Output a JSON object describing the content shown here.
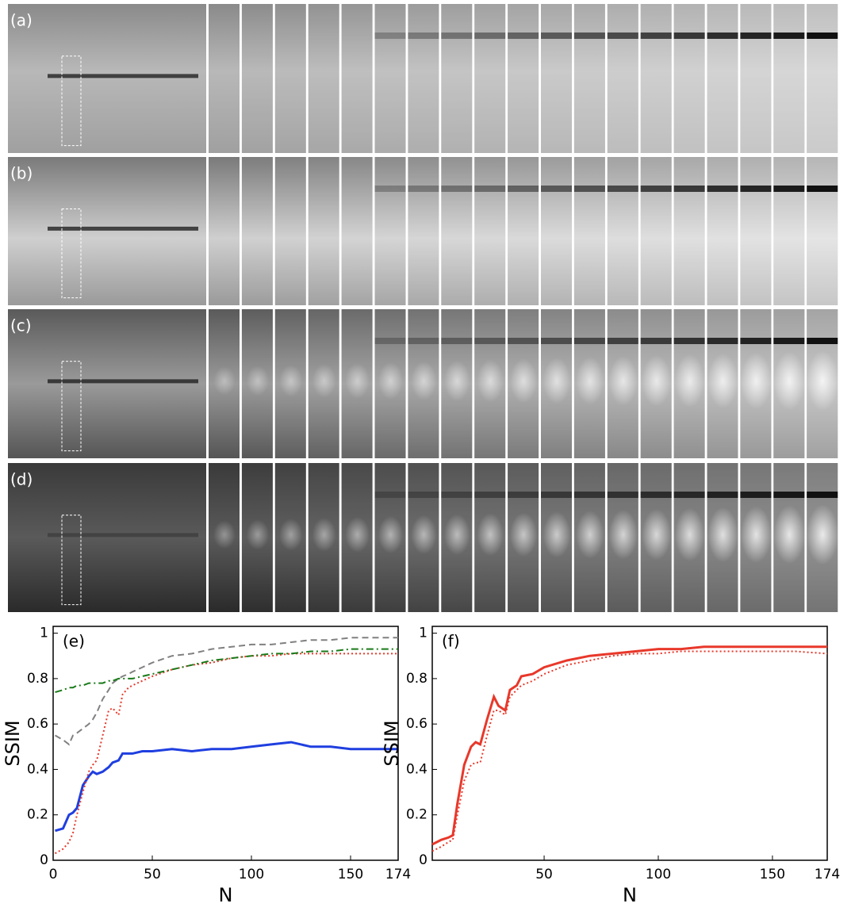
{
  "panels": [
    {
      "label": "(a)"
    },
    {
      "label": "(b)"
    },
    {
      "label": "(c)"
    },
    {
      "label": "(d)"
    }
  ],
  "chart_data": [
    {
      "type": "line",
      "annotation": "(e)",
      "xlabel": "N",
      "ylabel": "SSIM",
      "x": [
        1,
        5,
        8,
        10,
        12,
        15,
        18,
        20,
        22,
        25,
        28,
        30,
        33,
        35,
        38,
        40,
        45,
        50,
        60,
        70,
        80,
        90,
        100,
        110,
        120,
        130,
        140,
        150,
        160,
        174
      ],
      "xlim": [
        0,
        174
      ],
      "xticks": [
        0,
        50,
        100,
        150,
        174
      ],
      "ylim": [
        0,
        1.03
      ],
      "yticks": [
        0,
        0.2,
        0.4,
        0.6,
        0.8,
        1
      ],
      "series": [
        {
          "color": "#1f3fe0",
          "dash": "solid",
          "values": [
            0.13,
            0.14,
            0.2,
            0.21,
            0.23,
            0.33,
            0.37,
            0.39,
            0.38,
            0.39,
            0.41,
            0.43,
            0.44,
            0.47,
            0.47,
            0.47,
            0.48,
            0.48,
            0.49,
            0.48,
            0.49,
            0.49,
            0.5,
            0.51,
            0.52,
            0.5,
            0.5,
            0.49,
            0.49,
            0.49
          ]
        },
        {
          "color": "#808080",
          "dash": "dashed",
          "values": [
            0.55,
            0.53,
            0.51,
            0.55,
            0.56,
            0.58,
            0.6,
            0.62,
            0.65,
            0.71,
            0.75,
            0.78,
            0.8,
            0.81,
            0.82,
            0.83,
            0.85,
            0.87,
            0.9,
            0.91,
            0.93,
            0.94,
            0.95,
            0.95,
            0.96,
            0.97,
            0.97,
            0.98,
            0.98,
            0.98
          ]
        },
        {
          "color": "#e8382a",
          "dash": "dotted",
          "values": [
            0.03,
            0.05,
            0.08,
            0.12,
            0.2,
            0.3,
            0.39,
            0.42,
            0.44,
            0.55,
            0.66,
            0.67,
            0.64,
            0.73,
            0.76,
            0.77,
            0.79,
            0.81,
            0.84,
            0.86,
            0.87,
            0.89,
            0.9,
            0.9,
            0.91,
            0.91,
            0.91,
            0.91,
            0.91,
            0.91
          ]
        },
        {
          "color": "#1a7a1a",
          "dash": "dashdot",
          "values": [
            0.74,
            0.75,
            0.76,
            0.76,
            0.77,
            0.77,
            0.78,
            0.78,
            0.78,
            0.78,
            0.79,
            0.79,
            0.8,
            0.8,
            0.8,
            0.8,
            0.81,
            0.82,
            0.84,
            0.86,
            0.88,
            0.89,
            0.9,
            0.91,
            0.91,
            0.92,
            0.92,
            0.93,
            0.93,
            0.93
          ]
        }
      ]
    },
    {
      "type": "line",
      "annotation": "(f)",
      "xlabel": "N",
      "ylabel": "SSIM",
      "x": [
        1,
        5,
        8,
        10,
        12,
        15,
        18,
        20,
        22,
        25,
        28,
        30,
        33,
        35,
        38,
        40,
        45,
        50,
        60,
        70,
        80,
        90,
        100,
        110,
        120,
        130,
        140,
        150,
        160,
        174
      ],
      "xlim": [
        1,
        174
      ],
      "xticks": [
        50,
        100,
        150,
        174
      ],
      "ylim": [
        0,
        1.03
      ],
      "yticks": [
        0,
        0.2,
        0.4,
        0.6,
        0.8,
        1
      ],
      "series": [
        {
          "color": "#e8382a",
          "dash": "solid",
          "values": [
            0.07,
            0.09,
            0.1,
            0.11,
            0.25,
            0.42,
            0.5,
            0.52,
            0.51,
            0.62,
            0.72,
            0.68,
            0.66,
            0.75,
            0.77,
            0.81,
            0.82,
            0.85,
            0.88,
            0.9,
            0.91,
            0.92,
            0.93,
            0.93,
            0.94,
            0.94,
            0.94,
            0.94,
            0.94,
            0.94
          ]
        },
        {
          "color": "#e8382a",
          "dash": "dotted",
          "values": [
            0.04,
            0.06,
            0.08,
            0.09,
            0.2,
            0.35,
            0.42,
            0.43,
            0.43,
            0.55,
            0.66,
            0.66,
            0.64,
            0.72,
            0.75,
            0.77,
            0.79,
            0.82,
            0.86,
            0.88,
            0.9,
            0.91,
            0.91,
            0.92,
            0.92,
            0.92,
            0.92,
            0.92,
            0.92,
            0.91
          ]
        }
      ]
    }
  ]
}
